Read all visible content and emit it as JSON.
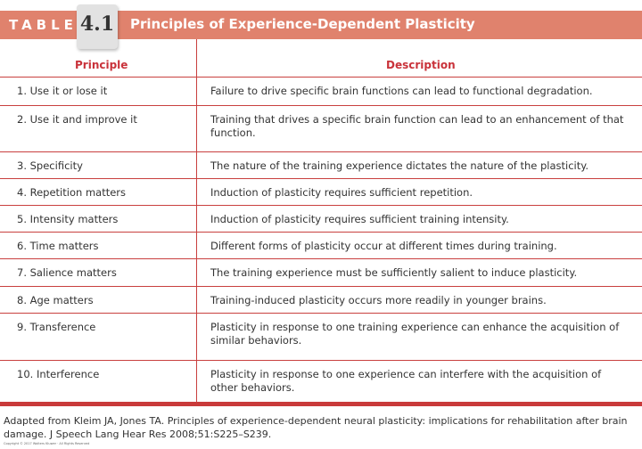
{
  "header": {
    "label": "TABLE",
    "number": "4.1",
    "title": "Principles of Experience-Dependent Plasticity"
  },
  "columns": {
    "principle": "Principle",
    "description": "Description"
  },
  "rows": [
    {
      "principle": "1. Use it or lose it",
      "description": "Failure to drive specific brain functions can lead to functional degradation."
    },
    {
      "principle": "2. Use it and improve it",
      "description": "Training that drives a specific brain function can lead to an enhancement of that function."
    },
    {
      "principle": "3. Specificity",
      "description": "The nature of the training experience dictates the nature of the plasticity."
    },
    {
      "principle": "4. Repetition matters",
      "description": "Induction of plasticity requires sufficient repetition."
    },
    {
      "principle": "5. Intensity matters",
      "description": "Induction of plasticity requires sufficient training intensity."
    },
    {
      "principle": "6. Time matters",
      "description": "Different forms of plasticity occur at different times during training."
    },
    {
      "principle": "7. Salience matters",
      "description": "The training experience must be sufficiently salient to induce plasticity."
    },
    {
      "principle": "8. Age matters",
      "description": "Training-induced plasticity occurs more readily in younger brains."
    },
    {
      "principle": "9. Transference",
      "description": "Plasticity in response to one training experience can enhance the acquisition of similar behaviors."
    },
    {
      "principle": "10. Interference",
      "description": "Plasticity in response to one experience can interfere with the acquisition of other behaviors."
    }
  ],
  "citation": "Adapted from Kleim JA, Jones TA. Principles of experience-dependent neural plasticity: implications for rehabilitation after brain damage. J Speech Lang Hear Res 2008;51:S225–S239.",
  "copyright": "Copyright © 2017 Wolters Kluwer · All Rights Reserved"
}
